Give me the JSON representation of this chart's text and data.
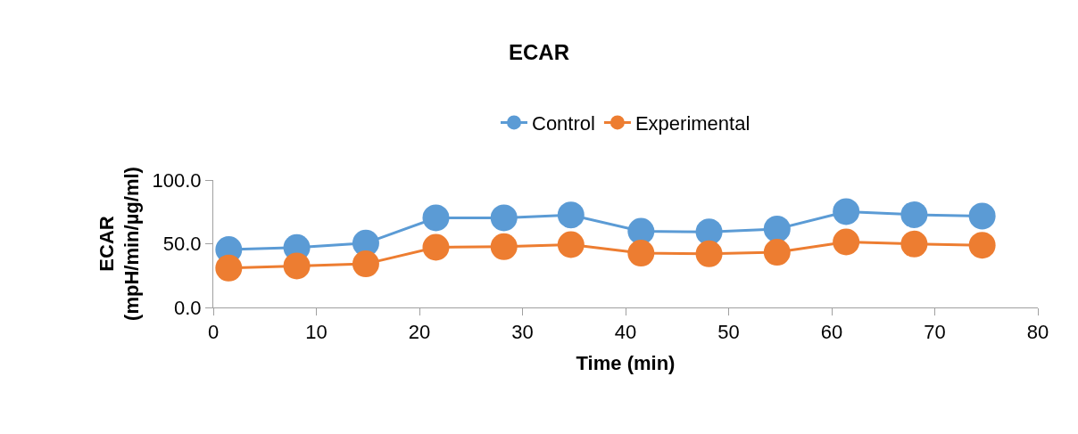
{
  "chart_data": {
    "type": "line",
    "title": "ECAR",
    "xlabel": "Time (min)",
    "ylabel": "ECAR\n(mpH/min/µg/ml)",
    "x": [
      1.5,
      8.1,
      14.8,
      21.6,
      28.2,
      34.7,
      41.5,
      48.1,
      54.7,
      61.4,
      68.0,
      74.6
    ],
    "series": [
      {
        "name": "Control",
        "color": "#5b9bd5",
        "values": [
          45.4,
          47.0,
          50.5,
          70.3,
          70.3,
          72.6,
          59.8,
          59.3,
          61.6,
          75.2,
          72.8,
          71.7
        ]
      },
      {
        "name": "Experimental",
        "color": "#ed7d31",
        "values": [
          30.9,
          32.6,
          34.2,
          47.2,
          47.7,
          49.3,
          42.6,
          42.1,
          43.3,
          51.4,
          49.8,
          48.8
        ]
      }
    ],
    "xlim": [
      0,
      80
    ],
    "xticks": [
      0,
      10,
      20,
      30,
      40,
      50,
      60,
      70,
      80
    ],
    "ylim": [
      0,
      100
    ],
    "yticks": [
      {
        "value": 0,
        "label": "0.0"
      },
      {
        "value": 50,
        "label": "50.0"
      },
      {
        "value": 100,
        "label": "100.0"
      }
    ],
    "legend": "top",
    "marker": "circle",
    "line_style": "solid"
  }
}
